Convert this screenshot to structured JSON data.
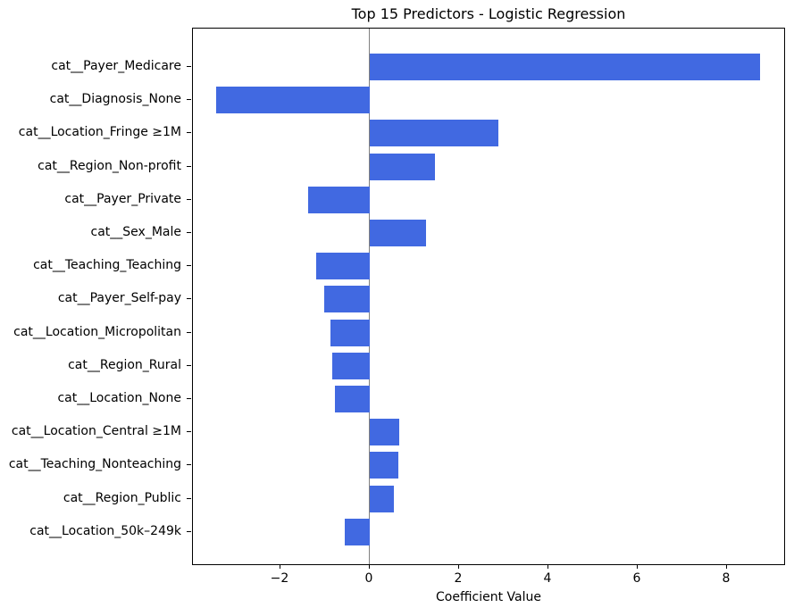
{
  "chart_data": {
    "type": "bar",
    "orientation": "horizontal",
    "title": "Top 15 Predictors - Logistic Regression",
    "xlabel": "Coefficient Value",
    "ylabel": "",
    "categories": [
      "cat__Payer_Medicare",
      "cat__Diagnosis_None",
      "cat__Location_Fringe ≥1M",
      "cat__Region_Non-profit",
      "cat__Payer_Private",
      "cat__Sex_Male",
      "cat__Teaching_Teaching",
      "cat__Payer_Self-pay",
      "cat__Location_Micropolitan",
      "cat__Region_Rural",
      "cat__Location_None",
      "cat__Location_Central ≥1M",
      "cat__Teaching_Nonteaching",
      "cat__Region_Public",
      "cat__Location_50k–249k"
    ],
    "values": [
      8.74,
      -3.44,
      2.88,
      1.46,
      -1.38,
      1.26,
      -1.21,
      -1.02,
      -0.88,
      -0.84,
      -0.78,
      0.65,
      0.63,
      0.54,
      -0.56
    ],
    "xlim": [
      -3.96,
      9.32
    ],
    "xticks": [
      -2,
      0,
      2,
      4,
      6,
      8
    ],
    "grid": false,
    "legend_position": "none",
    "bar_color": "#4169e1",
    "zero_line_color": "#808080",
    "spine_color": "#000000",
    "background_color": "#ffffff"
  }
}
